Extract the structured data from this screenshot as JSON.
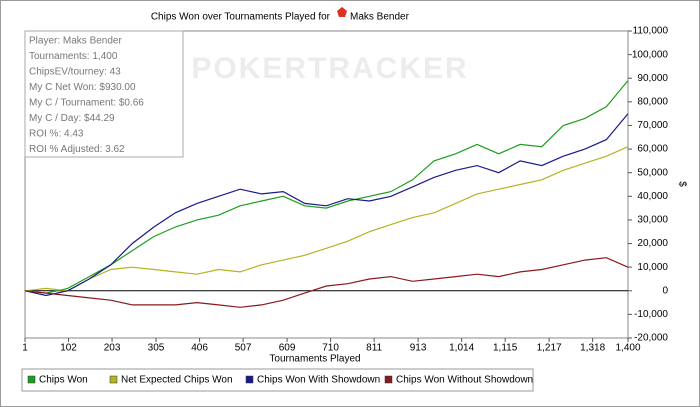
{
  "chart_data": {
    "type": "line",
    "title": "Chips Won over Tournaments Played for",
    "player": "Maks Bender",
    "watermark": "POKERTRACKER",
    "xlabel": "Tournaments Played",
    "ylabel": "$",
    "annotations": [
      "Player: Maks Bender",
      "Tournaments: 1,400",
      "ChipsEV/tourney: 43",
      "My C Net Won: $930.00",
      "My C / Tournament: $0.66",
      "My C / Day: $44.29",
      "ROI %: 4.43",
      "ROI % Adjusted: 3.62"
    ],
    "x": [
      1,
      50,
      100,
      150,
      200,
      250,
      300,
      350,
      400,
      450,
      500,
      550,
      600,
      650,
      700,
      750,
      800,
      850,
      900,
      950,
      1000,
      1050,
      1100,
      1150,
      1200,
      1250,
      1300,
      1350,
      1400
    ],
    "series": [
      {
        "name": "Chips Won",
        "color": "#1e9e1e",
        "values": [
          0,
          -1000,
          1000,
          6000,
          11000,
          17000,
          23000,
          27000,
          30000,
          32000,
          36000,
          38000,
          40000,
          36000,
          35000,
          38000,
          40000,
          42000,
          47000,
          55000,
          58000,
          62000,
          58000,
          62000,
          61000,
          70000,
          73000,
          78000,
          89000
        ]
      },
      {
        "name": "Net Expected Chips Won",
        "color": "#b3b324",
        "values": [
          0,
          1000,
          0,
          5000,
          9000,
          10000,
          9000,
          8000,
          7000,
          9000,
          8000,
          11000,
          13000,
          15000,
          18000,
          21000,
          25000,
          28000,
          31000,
          33000,
          37000,
          41000,
          43000,
          45000,
          47000,
          51000,
          54000,
          57000,
          61000
        ]
      },
      {
        "name": "Chips Won With Showdown",
        "color": "#1a1a8c",
        "values": [
          0,
          -2000,
          0,
          5000,
          11000,
          20000,
          27000,
          33000,
          37000,
          40000,
          43000,
          41000,
          42000,
          37000,
          36000,
          39000,
          38000,
          40000,
          44000,
          48000,
          51000,
          53000,
          50000,
          55000,
          53000,
          57000,
          60000,
          64000,
          75000
        ]
      },
      {
        "name": "Chips Won Without Showdown",
        "color": "#8b1a1a",
        "values": [
          0,
          -1000,
          -2000,
          -3000,
          -4000,
          -6000,
          -6000,
          -6000,
          -5000,
          -6000,
          -7000,
          -6000,
          -4000,
          -1000,
          2000,
          3000,
          5000,
          6000,
          4000,
          5000,
          6000,
          7000,
          6000,
          8000,
          9000,
          11000,
          13000,
          14000,
          10000
        ]
      }
    ],
    "xlim": [
      1,
      1400
    ],
    "xticks": [
      1,
      102,
      203,
      305,
      406,
      507,
      609,
      710,
      811,
      913,
      {
        "value": 1014,
        "label": "1,014"
      },
      {
        "value": 1115,
        "label": "1,115"
      },
      {
        "value": 1217,
        "label": "1,217"
      },
      {
        "value": 1318,
        "label": "1,318"
      },
      {
        "value": 1400,
        "label": "1,400"
      }
    ],
    "ylim": [
      -20000,
      110000
    ],
    "yticks": [
      {
        "value": -20000,
        "label": "-20,000"
      },
      {
        "value": -10000,
        "label": "-10,000"
      },
      0,
      {
        "value": 10000,
        "label": "10,000"
      },
      {
        "value": 20000,
        "label": "20,000"
      },
      {
        "value": 30000,
        "label": "30,000"
      },
      {
        "value": 40000,
        "label": "40,000"
      },
      {
        "value": 50000,
        "label": "50,000"
      },
      {
        "value": 60000,
        "label": "60,000"
      },
      {
        "value": 70000,
        "label": "70,000"
      },
      {
        "value": 80000,
        "label": "80,000"
      },
      {
        "value": 90000,
        "label": "90,000"
      },
      {
        "value": 100000,
        "label": "100,000"
      },
      {
        "value": 110000,
        "label": "110,000"
      }
    ],
    "grid": false,
    "legend": "bottom"
  }
}
